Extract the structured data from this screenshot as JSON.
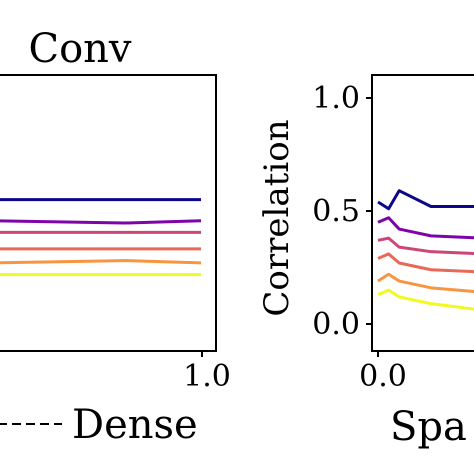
{
  "chart_data": [
    {
      "type": "line",
      "title": "Conv",
      "xlabel": "",
      "ylabel": "",
      "xlim": [
        0.0,
        1.0
      ],
      "x_ticks_visible": [
        "1.0"
      ],
      "colors": [
        "#0d0887",
        "#7e03a8",
        "#cc4778",
        "#e8695a",
        "#f89540",
        "#f0f921"
      ],
      "x": [
        0.0,
        0.6,
        0.95
      ],
      "series": [
        {
          "values": [
            0.62,
            0.62,
            0.62
          ]
        },
        {
          "values": [
            0.53,
            0.52,
            0.53
          ]
        },
        {
          "values": [
            0.48,
            0.48,
            0.48
          ]
        },
        {
          "values": [
            0.41,
            0.41,
            0.41
          ]
        },
        {
          "values": [
            0.35,
            0.36,
            0.35
          ]
        },
        {
          "values": [
            0.3,
            0.3,
            0.3
          ]
        }
      ],
      "ylim": [
        0.0,
        1.1
      ],
      "grid": false
    },
    {
      "type": "line",
      "title": "",
      "xlabel": "Spa",
      "ylabel": "Correlation",
      "xlim": [
        0.0,
        1.0
      ],
      "ylim": [
        -0.05,
        1.1
      ],
      "x_ticks": [
        "0.0"
      ],
      "y_ticks": [
        "0.0",
        "0.5",
        "1.0"
      ],
      "x": [
        0.0,
        0.02,
        0.04,
        0.1,
        0.2
      ],
      "series": [
        {
          "values": [
            0.54,
            0.51,
            0.59,
            0.52,
            0.52
          ]
        },
        {
          "values": [
            0.45,
            0.47,
            0.42,
            0.39,
            0.38
          ]
        },
        {
          "values": [
            0.37,
            0.38,
            0.34,
            0.32,
            0.31
          ]
        },
        {
          "values": [
            0.29,
            0.31,
            0.27,
            0.24,
            0.23
          ]
        },
        {
          "values": [
            0.19,
            0.22,
            0.19,
            0.16,
            0.14
          ]
        },
        {
          "values": [
            0.13,
            0.15,
            0.12,
            0.09,
            0.06
          ]
        }
      ],
      "grid": false
    }
  ],
  "legend": {
    "dense_label": "Dense"
  }
}
